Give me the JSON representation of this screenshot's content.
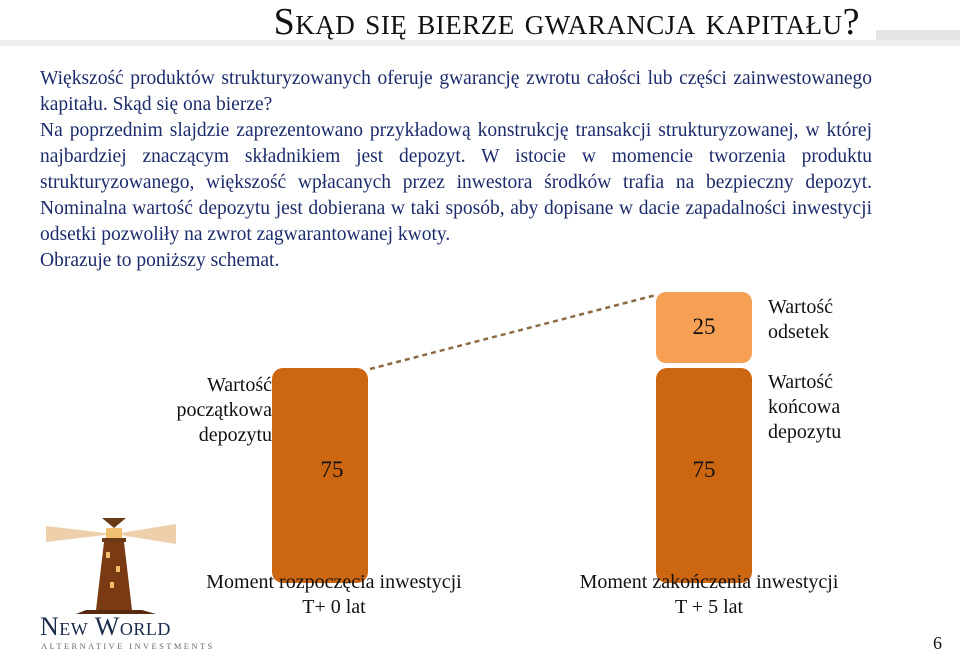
{
  "slide": {
    "title": "Skąd się bierze gwarancja kapitału?",
    "paragraphs": [
      "Większość produktów strukturyzowanych oferuje gwarancję zwrotu całości lub części zainwestowanego kapitału. Skąd się ona bierze?",
      "Na poprzednim slajdzie zaprezentowano przykładową konstrukcję transakcji strukturyzowanej, w której najbardziej znaczącym składnikiem jest depozyt. W istocie w momencie tworzenia produktu strukturyzowanego, większość wpłacanych przez inwestora środków trafia na bezpieczny depozyt. Nominalna wartość depozytu jest dobierana w taki sposób, aby dopisane w dacie zapadalności inwestycji odsetki pozwoliły na zwrot zagwarantowanej kwoty.",
      "Obrazuje to poniższy schemat."
    ],
    "page_number": "6"
  },
  "diagram": {
    "left_bar_label": "Wartość\npoczątkowa\ndepozytu",
    "left_bar_value": "75",
    "right_interest_value": "25",
    "right_interest_label": "Wartość\nodsetek",
    "right_bar_label": "Wartość\nkońcowa\ndepozytu",
    "right_bar_value": "75",
    "left_time_label": "Moment rozpoczęcia inwestycji\nT+ 0 lat",
    "right_time_label": "Moment zakończenia inwestycji\nT + 5 lat",
    "colors": {
      "deposit": "#cc6611",
      "interest": "#f5a055",
      "connector": "#8c6a44"
    }
  },
  "logo": {
    "name": "New World",
    "subtitle": "ALTERNATIVE INVESTMENTS"
  }
}
